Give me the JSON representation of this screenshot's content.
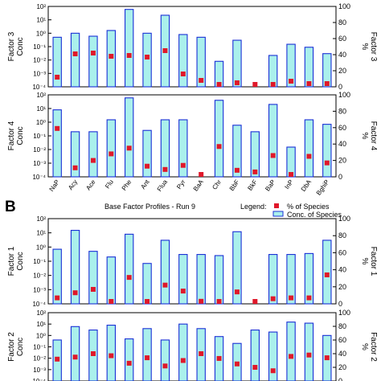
{
  "panel_label": "B",
  "run_title": "Base Factor Profiles - Run 9",
  "legend": {
    "title": "Legend:",
    "percent_label": "% of Species",
    "conc_label": "Conc. of Species"
  },
  "colors": {
    "bar_fill": "#aaf0ec",
    "bar_stroke": "#1a2fd6",
    "marker": "#e0182a",
    "axis": "#000000",
    "panel_label": "#000000"
  },
  "log_tick_labels": [
    "10²",
    "10¹",
    "10⁰",
    "10⁻¹",
    "10⁻²",
    "10⁻³",
    "10⁻⁴"
  ],
  "pct_tick_labels": [
    "100",
    "80",
    "60",
    "40",
    "20",
    "0"
  ],
  "chart_data": [
    {
      "type": "bar",
      "panel": "Factor 3",
      "ylabel_left": "Factor 3 Conc",
      "ylabel_right": "Factor 3 %",
      "categories": [
        "NaP",
        "Acy",
        "Ace",
        "Flu",
        "Phe",
        "Ant",
        "Flua",
        "Pyr",
        "BaA",
        "Chr",
        "BbF",
        "BkF",
        "BaP",
        "InP",
        "DbA",
        "BghiP"
      ],
      "y_scale": "log",
      "ylim": [
        0.0001,
        100
      ],
      "y2lim": [
        0,
        100
      ],
      "series": [
        {
          "name": "Conc. of Species",
          "values": [
            0.5,
            1.0,
            0.6,
            1.6,
            60,
            1.0,
            22,
            0.8,
            0.5,
            0.008,
            0.3,
            0.0001,
            0.022,
            0.15,
            0.09,
            0.03
          ]
        },
        {
          "name": "% of Species",
          "values": [
            12,
            41,
            42,
            38,
            39,
            37,
            45,
            16,
            8,
            2,
            5,
            1,
            2,
            7,
            4,
            4
          ]
        }
      ]
    },
    {
      "type": "bar",
      "panel": "Factor 4",
      "ylabel_left": "Factor 4 Conc",
      "ylabel_right": "Factor 4 %",
      "categories": [
        "NaP",
        "Acy",
        "Ace",
        "Flu",
        "Phe",
        "Ant",
        "Flua",
        "Pyr",
        "BaA",
        "Chr",
        "BbF",
        "BkF",
        "BaP",
        "InP",
        "DbA",
        "BghiP"
      ],
      "y_scale": "log",
      "ylim": [
        0.0001,
        100
      ],
      "y2lim": [
        0,
        100
      ],
      "series": [
        {
          "name": "Conc. of Species",
          "values": [
            8,
            0.2,
            0.2,
            1.5,
            60,
            0.25,
            1.5,
            1.5,
            0.0001,
            40,
            0.6,
            0.2,
            20,
            0.015,
            1.5,
            0.7
          ]
        },
        {
          "name": "% of Species",
          "values": [
            59,
            11,
            20,
            28,
            35,
            13,
            9,
            14,
            0,
            37,
            8,
            6,
            26,
            1,
            25,
            17
          ]
        }
      ]
    },
    {
      "type": "bar",
      "panel": "Factor 1",
      "ylabel_left": "Factor 1 Conc",
      "ylabel_right": "Factor 1 %",
      "categories": [
        "NaP",
        "Acy",
        "Ace",
        "Flu",
        "Phe",
        "Ant",
        "Flua",
        "Pyr",
        "BaA",
        "Chr",
        "BbF",
        "BkF",
        "BaP",
        "InP",
        "DbA",
        "BghiP"
      ],
      "y_scale": "log",
      "ylim": [
        0.0001,
        100
      ],
      "y2lim": [
        0,
        100
      ],
      "series": [
        {
          "name": "Conc. of Species",
          "values": [
            0.7,
            15,
            0.5,
            0.2,
            8,
            0.07,
            3,
            0.3,
            0.3,
            0.25,
            12,
            0.0001,
            0.3,
            0.3,
            0.35,
            3
          ]
        },
        {
          "name": "% of Species",
          "values": [
            7,
            13,
            17,
            1,
            31,
            1,
            22,
            15,
            3,
            2,
            14,
            2,
            6,
            7,
            7,
            34
          ]
        }
      ]
    },
    {
      "type": "bar",
      "panel": "Factor 2",
      "ylabel_left": "Factor 2 Conc",
      "ylabel_right": "Factor 2 %",
      "categories": [
        "NaP",
        "Acy",
        "Ace",
        "Flu",
        "Phe",
        "Ant",
        "Flua",
        "Pyr",
        "BaA",
        "Chr",
        "BbF",
        "BkF",
        "BaP",
        "InP",
        "DbA",
        "BghiP"
      ],
      "y_scale": "log",
      "ylim": [
        0.0001,
        100
      ],
      "y2lim": [
        0,
        100
      ],
      "series": [
        {
          "name": "Conc. of Species",
          "values": [
            0.4,
            6,
            3,
            8,
            0.5,
            4,
            0.4,
            10,
            4,
            0.8,
            0.2,
            3,
            2,
            15,
            12,
            1
          ]
        },
        {
          "name": "% of Species",
          "values": [
            32,
            35,
            40,
            37,
            26,
            34,
            22,
            30,
            40,
            33,
            25,
            20,
            15,
            36,
            38,
            34
          ]
        }
      ]
    }
  ]
}
